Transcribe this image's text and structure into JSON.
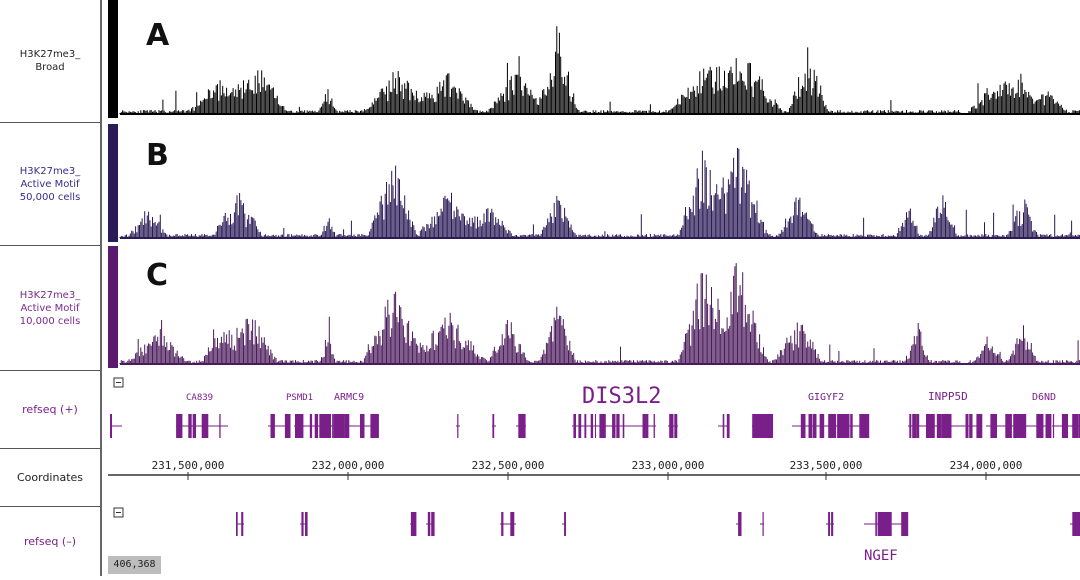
{
  "tracks": [
    {
      "label": "H3K27me3_\nBroad",
      "letter": "A",
      "color": "#000000",
      "labelColor": "#222222"
    },
    {
      "label": "H3K27me3_\nActive Motif\n50,000 cells",
      "letter": "B",
      "color": "#2a1a55",
      "labelColor": "#3a2a8a"
    },
    {
      "label": "H3K27me3_\nActive Motif\n10,000 cells",
      "letter": "C",
      "color": "#4a1a5a",
      "labelColor": "#7a2a8a"
    }
  ],
  "refseq_plus": {
    "label": "refseq (+)",
    "genes": [
      "CA839",
      "PSMD1",
      "ARMC9",
      "DIS3L2",
      "GIGYF2",
      "INPP5D",
      "D6ND"
    ]
  },
  "coordinates": {
    "label": "Coordinates",
    "ticks": [
      "231,500,000",
      "232,000,000",
      "232,500,000",
      "233,000,000",
      "233,500,000",
      "234,000,000"
    ]
  },
  "refseq_minus": {
    "label": "refseq (–)",
    "genes": [
      "NGEF"
    ]
  },
  "scroll_readout": "406,368",
  "colors": {
    "gene": "#7a1f8a",
    "sidebar_border": "#555555"
  }
}
